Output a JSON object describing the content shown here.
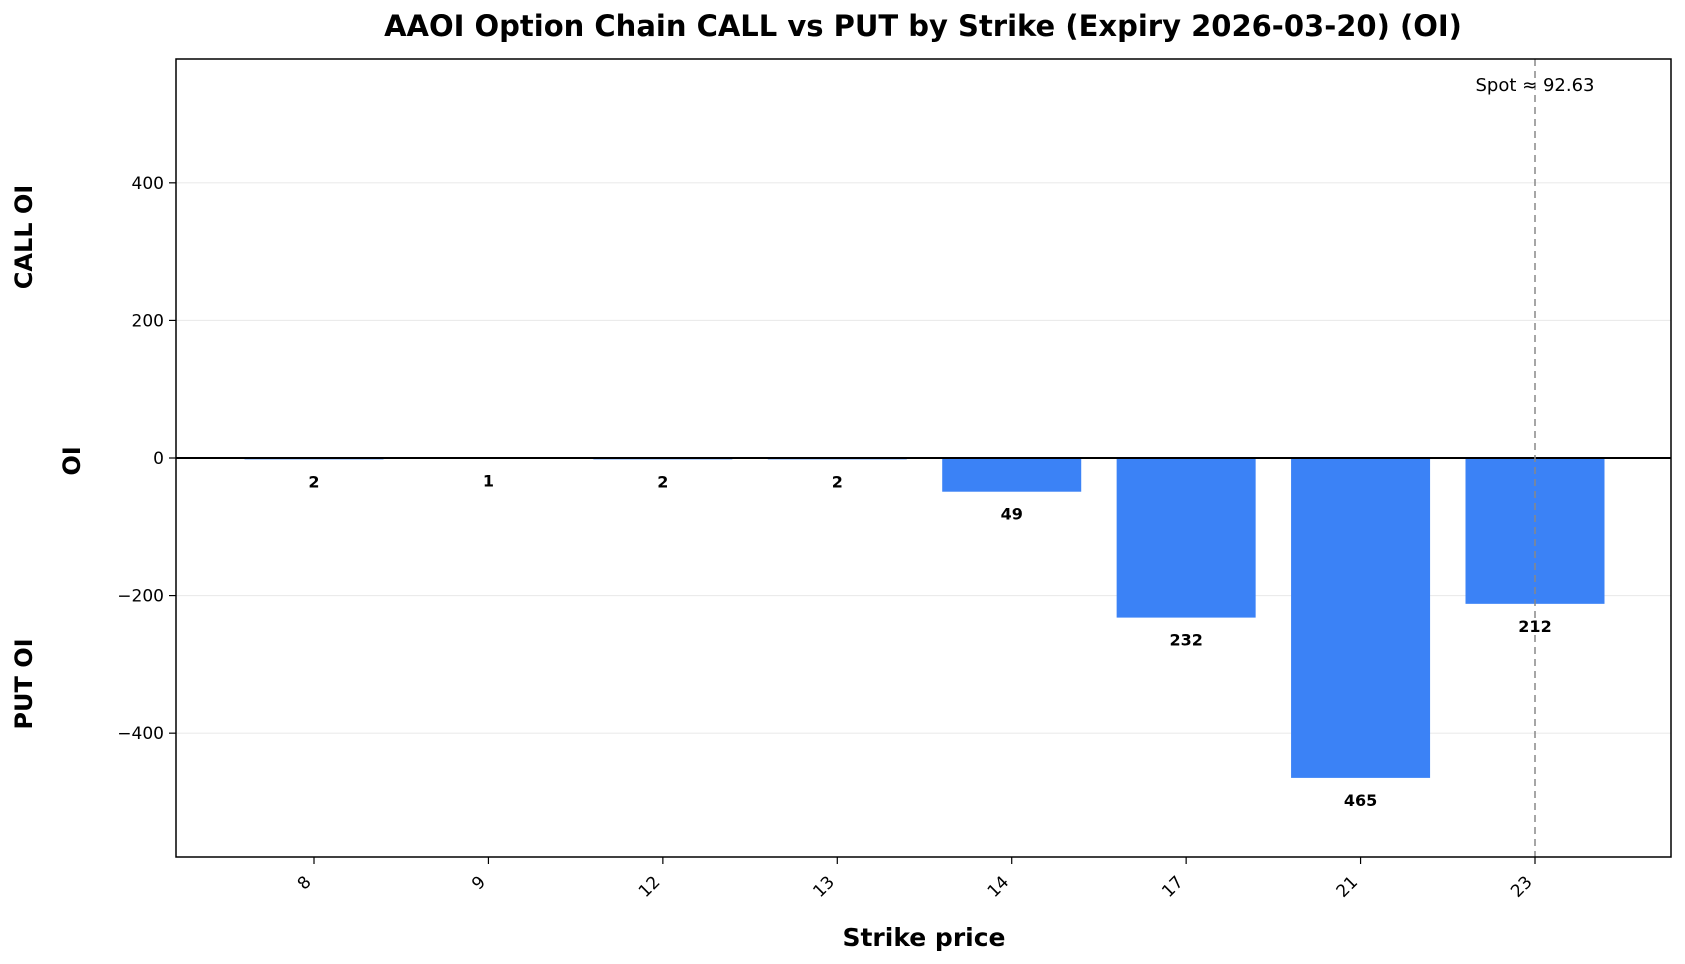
{
  "chart_data": {
    "type": "bar",
    "title": "AAOI Option Chain CALL vs PUT by Strike (Expiry 2026-03-20) (OI)",
    "xlabel": "Strike price",
    "ylabel": "OI",
    "ylabel_top": "CALL OI",
    "ylabel_bottom": "PUT OI",
    "categories": [
      "8",
      "9",
      "12",
      "13",
      "14",
      "17",
      "21",
      "23"
    ],
    "series": [
      {
        "values": [
          -2,
          -1,
          -2,
          -2,
          -49,
          -232,
          -465,
          -212
        ],
        "color": "#3b82f6"
      }
    ],
    "data_labels": [
      "2",
      "1",
      "2",
      "2",
      "49",
      "232",
      "465",
      "212"
    ],
    "yticks": [
      400,
      200,
      0,
      -200,
      -400
    ],
    "ytick_labels": [
      "400",
      "200",
      "0",
      "−200",
      "−400"
    ],
    "ylim": [
      -580,
      580
    ],
    "grid": true,
    "spot": {
      "label": "Spot ≈ 92.63",
      "category_index": 7
    }
  }
}
